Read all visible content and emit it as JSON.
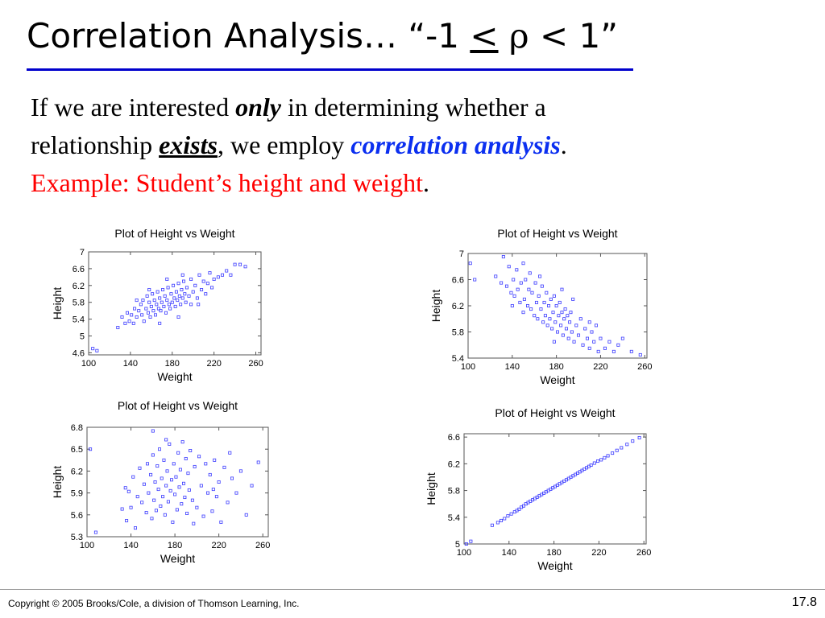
{
  "slide": {
    "title": {
      "prefix": "Correlation Analysis…  “-1 ",
      "le": "<",
      "rho": " ρ ",
      "suffix": "< 1”"
    },
    "body": {
      "line1_a": "If we are interested ",
      "line1_only": "only",
      "line1_b": " in determining whether a",
      "line2_a": "relationship ",
      "line2_exists": "exists",
      "line2_b": ", we employ ",
      "line2_blue": "correlation analysis",
      "line2_c": ".",
      "line3_red": "Example: Student’s height and weight",
      "line3_c": "."
    },
    "footer": "Copyright © 2005 Brooks/Cole, a division of Thomson Learning, Inc.",
    "page_number": "17.8",
    "colors": {
      "title_rule": "#0000cc",
      "marker": "#3a3aff",
      "blue_text": "#0b2ff0",
      "red_text": "#ff0000"
    }
  },
  "chart_data": [
    {
      "type": "scatter",
      "title": "Plot of Height vs Weight",
      "xlabel": "Weight",
      "ylabel": "Height",
      "xlim": [
        100,
        265
      ],
      "ylim": [
        4.55,
        7.0
      ],
      "xticks": [
        "100",
        "140",
        "180",
        "220",
        "260"
      ],
      "yticks": [
        "4.6",
        "5",
        "5.4",
        "5.8",
        "6.2",
        "6.6",
        "7"
      ],
      "relationship": "positive",
      "points": [
        [
          104,
          4.7
        ],
        [
          108,
          4.65
        ],
        [
          128,
          5.2
        ],
        [
          132,
          5.45
        ],
        [
          135,
          5.3
        ],
        [
          137,
          5.55
        ],
        [
          139,
          5.35
        ],
        [
          141,
          5.5
        ],
        [
          143,
          5.3
        ],
        [
          144,
          5.65
        ],
        [
          146,
          5.45
        ],
        [
          148,
          5.6
        ],
        [
          150,
          5.75
        ],
        [
          151,
          5.5
        ],
        [
          152,
          5.85
        ],
        [
          153,
          5.35
        ],
        [
          155,
          5.65
        ],
        [
          156,
          5.95
        ],
        [
          157,
          5.55
        ],
        [
          158,
          5.8
        ],
        [
          159,
          5.45
        ],
        [
          160,
          5.7
        ],
        [
          161,
          6.0
        ],
        [
          162,
          5.6
        ],
        [
          163,
          5.85
        ],
        [
          164,
          5.5
        ],
        [
          165,
          5.75
        ],
        [
          166,
          6.05
        ],
        [
          167,
          5.65
        ],
        [
          168,
          5.9
        ],
        [
          169,
          5.6
        ],
        [
          170,
          5.8
        ],
        [
          171,
          6.1
        ],
        [
          172,
          5.7
        ],
        [
          173,
          5.95
        ],
        [
          174,
          5.55
        ],
        [
          175,
          5.85
        ],
        [
          176,
          6.15
        ],
        [
          177,
          5.75
        ],
        [
          178,
          5.65
        ],
        [
          179,
          6.0
        ],
        [
          180,
          5.8
        ],
        [
          181,
          6.2
        ],
        [
          182,
          5.9
        ],
        [
          183,
          5.7
        ],
        [
          184,
          6.05
        ],
        [
          185,
          5.85
        ],
        [
          186,
          6.25
        ],
        [
          187,
          5.95
        ],
        [
          188,
          5.75
        ],
        [
          189,
          6.1
        ],
        [
          190,
          5.9
        ],
        [
          191,
          6.3
        ],
        [
          192,
          6.0
        ],
        [
          193,
          5.8
        ],
        [
          194,
          6.15
        ],
        [
          196,
          5.95
        ],
        [
          198,
          6.35
        ],
        [
          200,
          6.05
        ],
        [
          202,
          6.2
        ],
        [
          204,
          5.9
        ],
        [
          206,
          6.45
        ],
        [
          208,
          6.1
        ],
        [
          210,
          6.3
        ],
        [
          212,
          6.0
        ],
        [
          214,
          6.25
        ],
        [
          216,
          6.5
        ],
        [
          218,
          6.15
        ],
        [
          220,
          6.35
        ],
        [
          224,
          6.4
        ],
        [
          228,
          6.45
        ],
        [
          232,
          6.55
        ],
        [
          236,
          6.45
        ],
        [
          240,
          6.7
        ],
        [
          245,
          6.7
        ],
        [
          250,
          6.65
        ],
        [
          168,
          5.3
        ],
        [
          175,
          6.35
        ],
        [
          186,
          5.45
        ],
        [
          198,
          5.75
        ],
        [
          158,
          6.1
        ],
        [
          146,
          5.85
        ],
        [
          190,
          6.45
        ],
        [
          205,
          5.75
        ]
      ]
    },
    {
      "type": "scatter",
      "title": "Plot of Height vs Weight",
      "xlabel": "Weight",
      "ylabel": "Height",
      "xlim": [
        100,
        262
      ],
      "ylim": [
        5.4,
        7.0
      ],
      "xticks": [
        "100",
        "140",
        "180",
        "220",
        "260"
      ],
      "yticks": [
        "5.4",
        "5.8",
        "6.2",
        "6.6",
        "7"
      ],
      "relationship": "negative",
      "points": [
        [
          102,
          6.85
        ],
        [
          106,
          6.6
        ],
        [
          125,
          6.65
        ],
        [
          130,
          6.55
        ],
        [
          132,
          6.95
        ],
        [
          135,
          6.5
        ],
        [
          137,
          6.8
        ],
        [
          139,
          6.4
        ],
        [
          141,
          6.6
        ],
        [
          142,
          6.35
        ],
        [
          144,
          6.75
        ],
        [
          145,
          6.45
        ],
        [
          147,
          6.25
        ],
        [
          148,
          6.55
        ],
        [
          150,
          6.85
        ],
        [
          151,
          6.3
        ],
        [
          152,
          6.6
        ],
        [
          154,
          6.2
        ],
        [
          155,
          6.45
        ],
        [
          156,
          6.7
        ],
        [
          157,
          6.15
        ],
        [
          158,
          6.4
        ],
        [
          160,
          6.05
        ],
        [
          161,
          6.55
        ],
        [
          162,
          6.25
        ],
        [
          163,
          6.0
        ],
        [
          164,
          6.35
        ],
        [
          166,
          6.15
        ],
        [
          167,
          6.5
        ],
        [
          168,
          5.95
        ],
        [
          169,
          6.25
        ],
        [
          170,
          6.05
        ],
        [
          171,
          6.4
        ],
        [
          172,
          5.9
        ],
        [
          173,
          6.2
        ],
        [
          174,
          6.0
        ],
        [
          175,
          6.3
        ],
        [
          176,
          5.85
        ],
        [
          177,
          6.1
        ],
        [
          178,
          6.35
        ],
        [
          179,
          5.95
        ],
        [
          180,
          6.2
        ],
        [
          181,
          5.8
        ],
        [
          182,
          6.05
        ],
        [
          183,
          6.25
        ],
        [
          184,
          5.9
        ],
        [
          185,
          6.1
        ],
        [
          186,
          5.75
        ],
        [
          187,
          6.0
        ],
        [
          188,
          6.15
        ],
        [
          189,
          5.85
        ],
        [
          190,
          6.05
        ],
        [
          191,
          5.7
        ],
        [
          192,
          5.95
        ],
        [
          193,
          6.1
        ],
        [
          194,
          5.8
        ],
        [
          196,
          5.65
        ],
        [
          198,
          5.9
        ],
        [
          200,
          5.75
        ],
        [
          202,
          6.0
        ],
        [
          204,
          5.6
        ],
        [
          206,
          5.85
        ],
        [
          208,
          5.7
        ],
        [
          210,
          5.55
        ],
        [
          212,
          5.8
        ],
        [
          214,
          5.65
        ],
        [
          216,
          5.9
        ],
        [
          218,
          5.5
        ],
        [
          220,
          5.7
        ],
        [
          224,
          5.55
        ],
        [
          228,
          5.65
        ],
        [
          232,
          5.5
        ],
        [
          236,
          5.6
        ],
        [
          240,
          5.7
        ],
        [
          248,
          5.5
        ],
        [
          256,
          5.45
        ],
        [
          165,
          6.65
        ],
        [
          178,
          5.65
        ],
        [
          150,
          6.1
        ],
        [
          195,
          6.3
        ],
        [
          210,
          5.95
        ],
        [
          185,
          6.45
        ],
        [
          140,
          6.2
        ]
      ]
    },
    {
      "type": "scatter",
      "title": "Plot of Height vs Weight",
      "xlabel": "Weight",
      "ylabel": "Height",
      "xlim": [
        100,
        265
      ],
      "ylim": [
        5.3,
        6.8
      ],
      "xticks": [
        "100",
        "140",
        "180",
        "220",
        "260"
      ],
      "yticks": [
        "5.3",
        "5.6",
        "5.9",
        "6.2",
        "6.5",
        "6.8"
      ],
      "relationship": "none",
      "points": [
        [
          103,
          6.5
        ],
        [
          108,
          5.36
        ],
        [
          132,
          5.68
        ],
        [
          135,
          5.97
        ],
        [
          138,
          5.92
        ],
        [
          140,
          5.7
        ],
        [
          142,
          6.12
        ],
        [
          144,
          5.42
        ],
        [
          146,
          5.85
        ],
        [
          148,
          6.24
        ],
        [
          150,
          5.77
        ],
        [
          152,
          6.02
        ],
        [
          154,
          5.63
        ],
        [
          155,
          6.3
        ],
        [
          156,
          5.9
        ],
        [
          158,
          6.15
        ],
        [
          159,
          5.55
        ],
        [
          160,
          6.42
        ],
        [
          161,
          5.8
        ],
        [
          162,
          6.05
        ],
        [
          163,
          5.66
        ],
        [
          164,
          6.27
        ],
        [
          165,
          5.95
        ],
        [
          166,
          6.5
        ],
        [
          167,
          5.72
        ],
        [
          168,
          6.1
        ],
        [
          169,
          5.85
        ],
        [
          170,
          6.35
        ],
        [
          171,
          5.6
        ],
        [
          172,
          6.0
        ],
        [
          173,
          6.2
        ],
        [
          174,
          5.78
        ],
        [
          175,
          6.57
        ],
        [
          176,
          5.93
        ],
        [
          177,
          6.08
        ],
        [
          178,
          5.5
        ],
        [
          179,
          6.3
        ],
        [
          180,
          5.88
        ],
        [
          181,
          6.12
        ],
        [
          182,
          5.67
        ],
        [
          183,
          6.45
        ],
        [
          184,
          5.98
        ],
        [
          185,
          6.22
        ],
        [
          186,
          5.75
        ],
        [
          187,
          6.6
        ],
        [
          188,
          6.03
        ],
        [
          189,
          5.84
        ],
        [
          190,
          6.37
        ],
        [
          191,
          5.62
        ],
        [
          192,
          6.17
        ],
        [
          193,
          5.94
        ],
        [
          194,
          6.48
        ],
        [
          196,
          5.8
        ],
        [
          198,
          6.26
        ],
        [
          200,
          5.7
        ],
        [
          202,
          6.4
        ],
        [
          204,
          6.0
        ],
        [
          206,
          5.58
        ],
        [
          208,
          6.3
        ],
        [
          210,
          5.9
        ],
        [
          212,
          6.15
        ],
        [
          214,
          5.65
        ],
        [
          216,
          6.35
        ],
        [
          218,
          5.85
        ],
        [
          220,
          6.05
        ],
        [
          222,
          5.5
        ],
        [
          225,
          6.25
        ],
        [
          228,
          5.77
        ],
        [
          232,
          6.1
        ],
        [
          236,
          5.9
        ],
        [
          240,
          6.2
        ],
        [
          245,
          5.6
        ],
        [
          250,
          6.0
        ],
        [
          256,
          6.32
        ],
        [
          160,
          6.75
        ],
        [
          172,
          6.63
        ],
        [
          136,
          5.52
        ],
        [
          197,
          5.48
        ],
        [
          230,
          6.45
        ],
        [
          215,
          5.95
        ]
      ]
    },
    {
      "type": "scatter",
      "title": "Plot of Height vs Weight",
      "xlabel": "Weight",
      "ylabel": "Height",
      "xlim": [
        100,
        262
      ],
      "ylim": [
        5.0,
        6.65
      ],
      "xticks": [
        "100",
        "140",
        "180",
        "220",
        "260"
      ],
      "yticks": [
        "5",
        "5.4",
        "5.8",
        "6.2",
        "6.6"
      ],
      "relationship": "perfect positive",
      "points": [
        [
          102,
          5.0
        ],
        [
          106,
          5.04
        ],
        [
          125,
          5.28
        ],
        [
          130,
          5.32
        ],
        [
          133,
          5.35
        ],
        [
          136,
          5.38
        ],
        [
          139,
          5.42
        ],
        [
          142,
          5.45
        ],
        [
          145,
          5.48
        ],
        [
          147,
          5.5
        ],
        [
          149,
          5.52
        ],
        [
          151,
          5.55
        ],
        [
          153,
          5.57
        ],
        [
          155,
          5.6
        ],
        [
          157,
          5.62
        ],
        [
          159,
          5.64
        ],
        [
          161,
          5.66
        ],
        [
          163,
          5.68
        ],
        [
          165,
          5.7
        ],
        [
          167,
          5.72
        ],
        [
          169,
          5.74
        ],
        [
          171,
          5.76
        ],
        [
          173,
          5.78
        ],
        [
          175,
          5.8
        ],
        [
          177,
          5.82
        ],
        [
          179,
          5.84
        ],
        [
          181,
          5.86
        ],
        [
          183,
          5.88
        ],
        [
          185,
          5.9
        ],
        [
          187,
          5.92
        ],
        [
          189,
          5.94
        ],
        [
          191,
          5.96
        ],
        [
          193,
          5.98
        ],
        [
          195,
          6.0
        ],
        [
          197,
          6.02
        ],
        [
          199,
          6.04
        ],
        [
          201,
          6.06
        ],
        [
          203,
          6.08
        ],
        [
          205,
          6.1
        ],
        [
          207,
          6.12
        ],
        [
          209,
          6.14
        ],
        [
          211,
          6.16
        ],
        [
          213,
          6.18
        ],
        [
          216,
          6.21
        ],
        [
          219,
          6.24
        ],
        [
          222,
          6.26
        ],
        [
          225,
          6.29
        ],
        [
          228,
          6.32
        ],
        [
          232,
          6.36
        ],
        [
          236,
          6.4
        ],
        [
          240,
          6.44
        ],
        [
          245,
          6.49
        ],
        [
          250,
          6.54
        ],
        [
          256,
          6.59
        ]
      ]
    }
  ]
}
